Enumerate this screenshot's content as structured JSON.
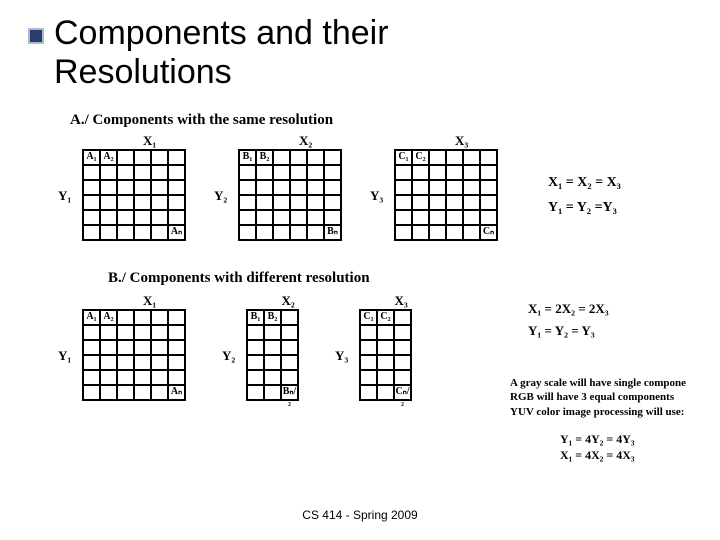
{
  "title": "Components and their\nResolutions",
  "sectionA": {
    "heading": "A./ Components with the same resolution",
    "grids": [
      {
        "x": "X₁",
        "y": "Y₁",
        "cellsTop": [
          "A₁",
          "A₂"
        ],
        "cellBR": "Aₙ",
        "cols": 6,
        "rows": 6,
        "cw": 17,
        "ch": 15
      },
      {
        "x": "X₂",
        "y": "Y₂",
        "cellsTop": [
          "B₁",
          "B₂"
        ],
        "cellBR": "Bₙ",
        "cols": 6,
        "rows": 6,
        "cw": 17,
        "ch": 15
      },
      {
        "x": "X₃",
        "y": "Y₃",
        "cellsTop": [
          "C₁",
          "C₂"
        ],
        "cellBR": "Cₙ",
        "cols": 6,
        "rows": 6,
        "cw": 17,
        "ch": 15
      }
    ],
    "eqns": [
      "X₁ = X₂ =  X₃",
      "Y₁ = Y₂ =Y₃"
    ]
  },
  "sectionB": {
    "heading": "B./ Components with different resolution",
    "grids": [
      {
        "x": "X₁",
        "y": "Y₁",
        "cellsTop": [
          "A₁",
          "A₂"
        ],
        "cellBR": "Aₙ",
        "cols": 6,
        "rows": 6,
        "cw": 17,
        "ch": 15
      },
      {
        "x": "X₂",
        "y": "Y₂",
        "cellsTop": [
          "B₁",
          "B₂"
        ],
        "cellBR": "Bₙ/₂",
        "cols": 3,
        "rows": 6,
        "cw": 17,
        "ch": 15
      },
      {
        "x": "X₃",
        "y": "Y₃",
        "cellsTop": [
          "C₁",
          "C₂"
        ],
        "cellBR": "Cₙ/₂",
        "cols": 3,
        "rows": 6,
        "cw": 17,
        "ch": 15
      }
    ],
    "eqns": [
      "X₁ = 2X₂ =  2X₃",
      "Y₁ = Y₂ = Y₃"
    ],
    "note": "A gray scale will have single compone\nRGB will have 3 equal components\nYUV color image processing will use:",
    "eqns2": [
      "Y₁ = 4Y₂ = 4Y₃",
      "X₁ = 4X₂ = 4X₃"
    ]
  },
  "footer": "CS 414 - Spring 2009"
}
